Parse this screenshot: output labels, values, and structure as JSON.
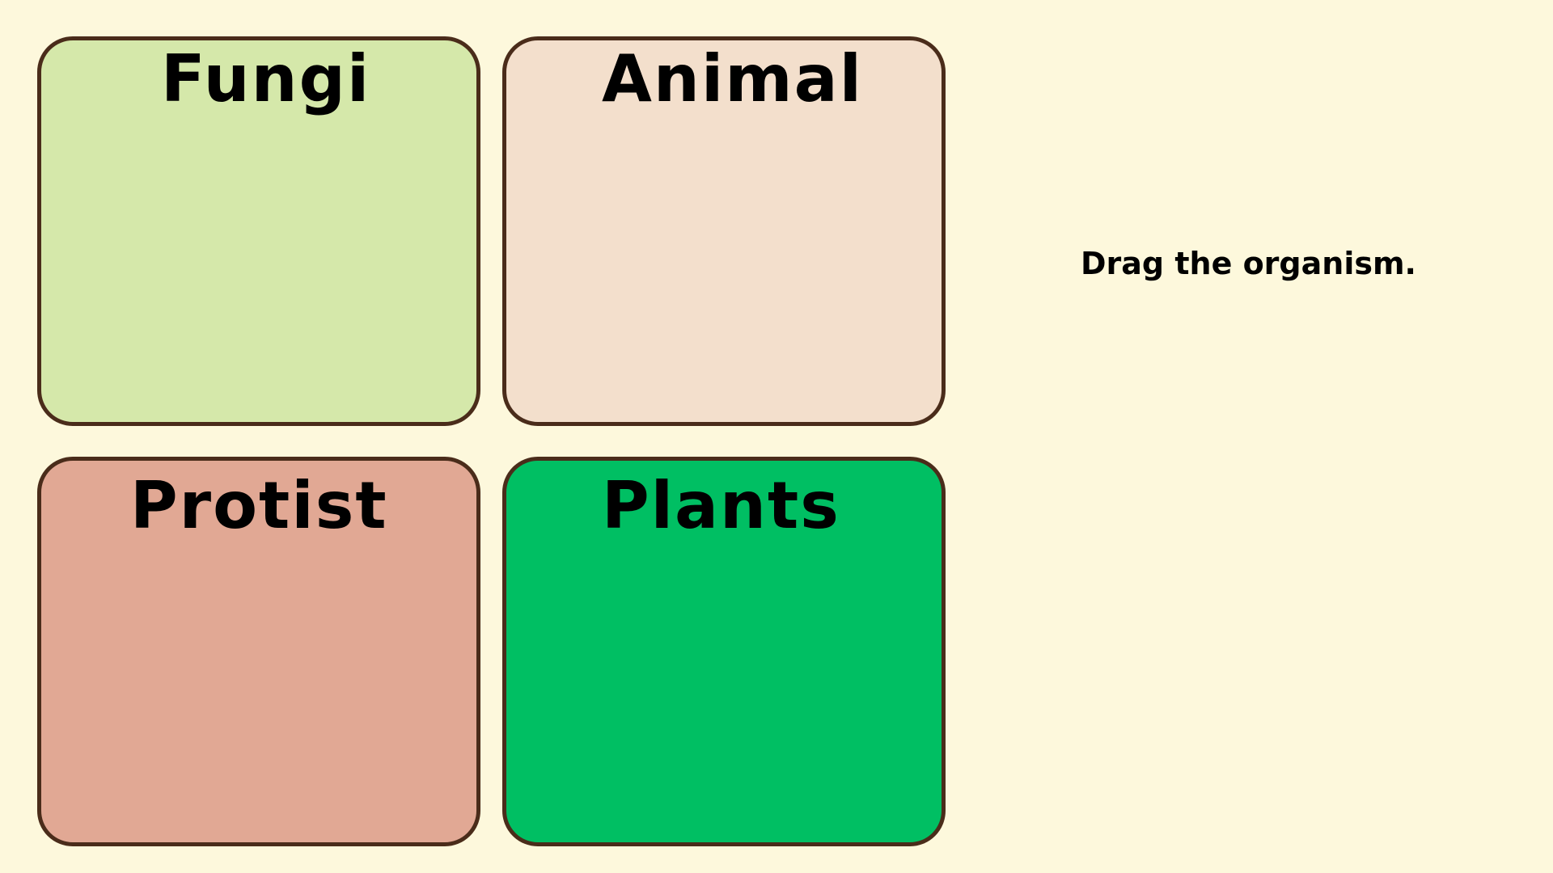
{
  "categories": [
    {
      "id": "fungi",
      "label": "Fungi",
      "color": "#d5e8aa"
    },
    {
      "id": "animal",
      "label": "Animal",
      "color": "#f3dfcc"
    },
    {
      "id": "protist",
      "label": "Protist",
      "color": "#e1a894"
    },
    {
      "id": "plants",
      "label": "Plants",
      "color": "#00bf63"
    }
  ],
  "instruction": "Drag the organism.",
  "colors": {
    "background": "#fdf8dc",
    "border": "#4a2c1a"
  }
}
